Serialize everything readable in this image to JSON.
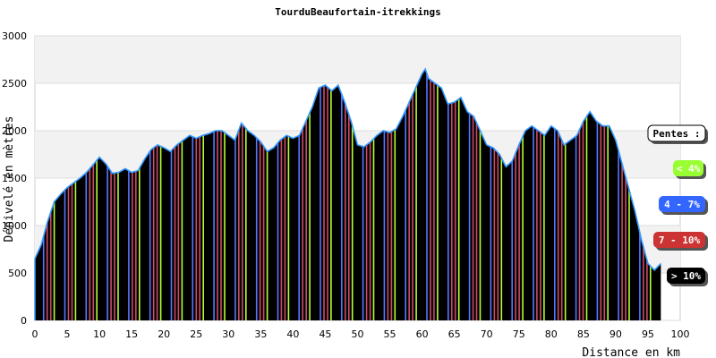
{
  "chart_data": {
    "type": "area",
    "title": "TourduBeaufortain-itrekkings",
    "xlabel": "Distance en km",
    "ylabel": "Dénivelé en mètres",
    "xlim": [
      0,
      100
    ],
    "ylim": [
      0,
      3000
    ],
    "x_ticks": [
      0,
      5,
      10,
      15,
      20,
      25,
      30,
      35,
      40,
      45,
      50,
      55,
      60,
      65,
      70,
      75,
      80,
      85,
      90,
      95,
      100
    ],
    "y_ticks": [
      0,
      500,
      1000,
      1500,
      2000,
      2500,
      3000
    ],
    "grid": true,
    "series": [
      {
        "x": [
          0,
          1,
          2,
          3,
          4,
          5,
          6,
          7,
          8,
          9,
          10,
          11,
          12,
          13,
          14,
          15,
          16,
          17,
          18,
          19,
          20,
          21,
          22,
          23,
          24,
          25,
          26,
          27,
          28,
          29,
          30,
          31,
          32,
          33,
          34,
          35,
          36,
          37,
          38,
          39,
          40,
          41,
          42,
          43,
          44,
          45,
          46,
          47,
          48,
          49,
          50,
          51,
          52,
          53,
          54,
          55,
          56,
          57,
          58,
          59,
          60,
          60.5,
          61,
          62,
          63,
          64,
          65,
          66,
          67,
          68,
          69,
          70,
          71,
          72,
          73,
          74,
          75,
          76,
          77,
          78,
          79,
          80,
          81,
          82,
          83,
          84,
          85,
          86,
          87,
          88,
          89,
          90,
          91,
          92,
          93,
          94,
          95,
          96,
          97
        ],
        "y": [
          650,
          800,
          1050,
          1250,
          1330,
          1400,
          1450,
          1500,
          1560,
          1640,
          1720,
          1650,
          1550,
          1560,
          1600,
          1560,
          1580,
          1700,
          1800,
          1850,
          1820,
          1780,
          1850,
          1900,
          1950,
          1920,
          1950,
          1970,
          2000,
          2000,
          1950,
          1900,
          2080,
          2000,
          1950,
          1880,
          1780,
          1820,
          1900,
          1950,
          1920,
          1950,
          2100,
          2250,
          2450,
          2480,
          2420,
          2480,
          2300,
          2100,
          1850,
          1830,
          1880,
          1950,
          2000,
          1980,
          2020,
          2150,
          2300,
          2450,
          2600,
          2650,
          2550,
          2500,
          2450,
          2280,
          2300,
          2350,
          2200,
          2150,
          2000,
          1850,
          1820,
          1750,
          1620,
          1680,
          1850,
          2000,
          2050,
          2000,
          1950,
          2050,
          2000,
          1850,
          1900,
          1950,
          2100,
          2200,
          2100,
          2050,
          2050,
          1900,
          1650,
          1400,
          1150,
          850,
          600,
          530,
          600
        ]
      }
    ],
    "legend": {
      "title": "Pentes :",
      "placement": "right",
      "items": [
        {
          "label": "< 4%",
          "color": "#99ff33",
          "text_color": "#ffffff"
        },
        {
          "label": "4 - 7%",
          "color": "#3366ff",
          "text_color": "#ffffff"
        },
        {
          "label": "7 - 10%",
          "color": "#cc3333",
          "text_color": "#ffffff"
        },
        {
          "label": "> 10%",
          "color": "#000000",
          "text_color": "#ffffff"
        }
      ]
    },
    "fill_colors": [
      "#000000",
      "#b5ff33",
      "#cc4c66",
      "#5577ff"
    ],
    "outline_color": "#3399ff"
  }
}
